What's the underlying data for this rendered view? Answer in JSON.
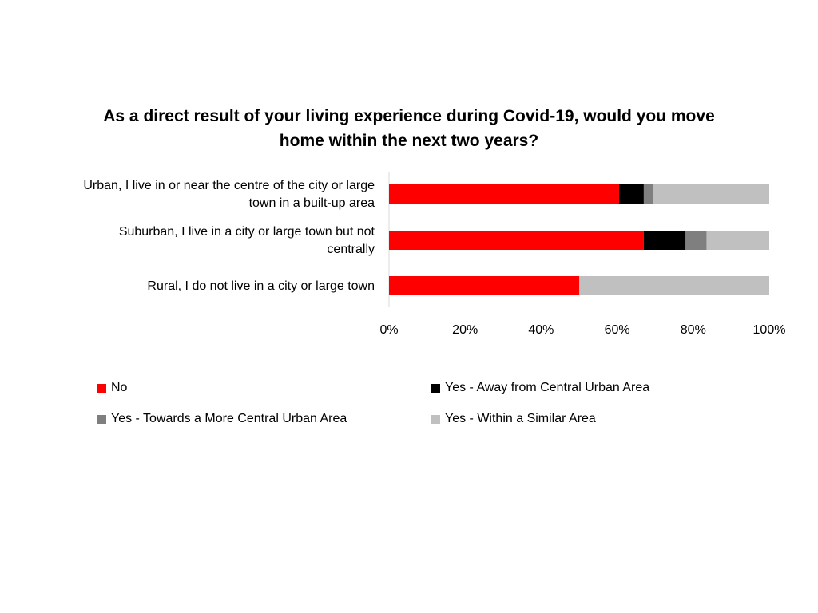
{
  "chart_data": {
    "type": "bar",
    "orientation": "horizontal",
    "stacked": "percent",
    "title": "As a direct result of your living experience during Covid-19, would you move home within the next two years?",
    "categories": [
      "Urban, I live in or near the centre of the city or large town in a built-up area",
      "Suburban, I live in a city or large town but not centrally",
      "Rural, I do not live in a city or large town"
    ],
    "category_lines": [
      [
        "Urban, I live in or near the centre of the city or large",
        "town in a built-up area"
      ],
      [
        "Suburban, I live in a city or large town but not",
        "centrally"
      ],
      [
        "Rural, I do not live in a city or large town"
      ]
    ],
    "series": [
      {
        "name": "No",
        "color": "#ff0000",
        "values": [
          60.5,
          67,
          50
        ]
      },
      {
        "name": "Yes - Away from Central Urban Area",
        "color": "#000000",
        "values": [
          6.5,
          11,
          0
        ]
      },
      {
        "name": "Yes - Towards a More Central Urban Area",
        "color": "#7f7f7f",
        "values": [
          2.5,
          5.5,
          0
        ]
      },
      {
        "name": "Yes - Within a Similar Area",
        "color": "#c0c0c0",
        "values": [
          30.5,
          16.5,
          50
        ]
      }
    ],
    "xticks": [
      "0%",
      "20%",
      "40%",
      "60%",
      "80%",
      "100%"
    ],
    "xlim": [
      0,
      100
    ],
    "grid": false,
    "legend_position": "bottom"
  }
}
